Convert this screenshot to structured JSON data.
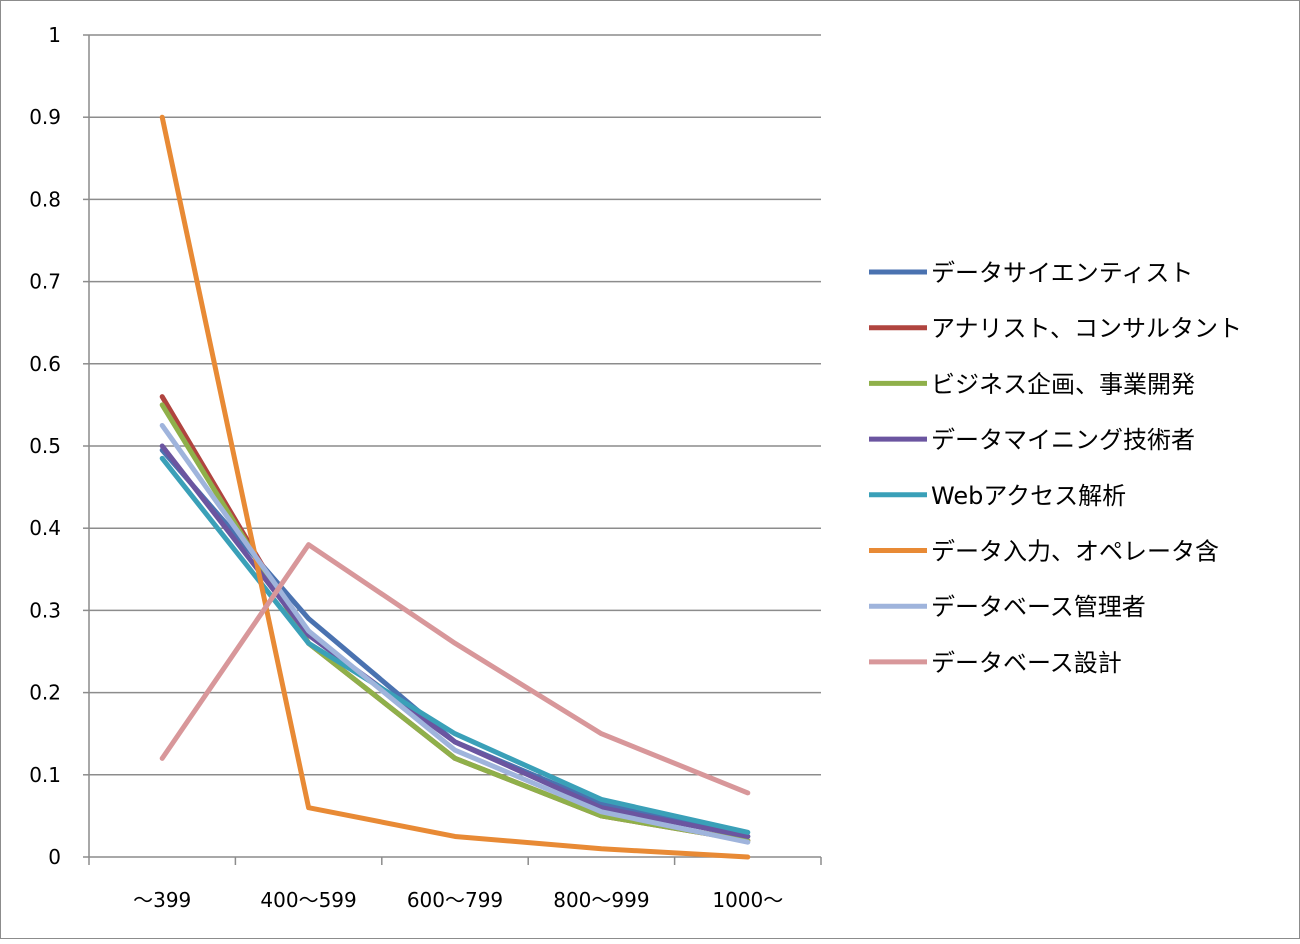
{
  "chart_data": {
    "type": "line",
    "title": "",
    "xlabel": "",
    "ylabel": "",
    "categories": [
      "～399",
      "400～599",
      "600～799",
      "800～999",
      "1000～"
    ],
    "ylim": [
      0,
      1
    ],
    "yticks": [
      "0",
      "0.1",
      "0.2",
      "0.3",
      "0.4",
      "0.5",
      "0.6",
      "0.7",
      "0.8",
      "0.9",
      "1"
    ],
    "grid": true,
    "legend_position": "right",
    "series": [
      {
        "name": "データサイエンティスト",
        "color": "#4a72b0",
        "values": [
          0.495,
          0.29,
          0.14,
          0.065,
          0.025
        ]
      },
      {
        "name": "アナリスト、コンサルタント",
        "color": "#b0443f",
        "values": [
          0.56,
          0.26,
          0.12,
          0.05,
          0.02
        ]
      },
      {
        "name": "ビジネス企画、事業開発",
        "color": "#8fb04a",
        "values": [
          0.55,
          0.26,
          0.12,
          0.05,
          0.02
        ]
      },
      {
        "name": "データマイニング技術者",
        "color": "#6b55a0",
        "values": [
          0.5,
          0.27,
          0.14,
          0.06,
          0.025
        ]
      },
      {
        "name": "Webアクセス解析",
        "color": "#3aa0b8",
        "values": [
          0.485,
          0.26,
          0.15,
          0.07,
          0.03
        ]
      },
      {
        "name": "データ入力、オペレータ含",
        "color": "#e88a35",
        "values": [
          0.9,
          0.06,
          0.025,
          0.01,
          0.0
        ]
      },
      {
        "name": "データベース管理者",
        "color": "#9fb4dc",
        "values": [
          0.525,
          0.275,
          0.13,
          0.055,
          0.018
        ]
      },
      {
        "name": "データベース設計",
        "color": "#d8979a",
        "values": [
          0.12,
          0.38,
          0.26,
          0.15,
          0.078
        ]
      }
    ]
  }
}
